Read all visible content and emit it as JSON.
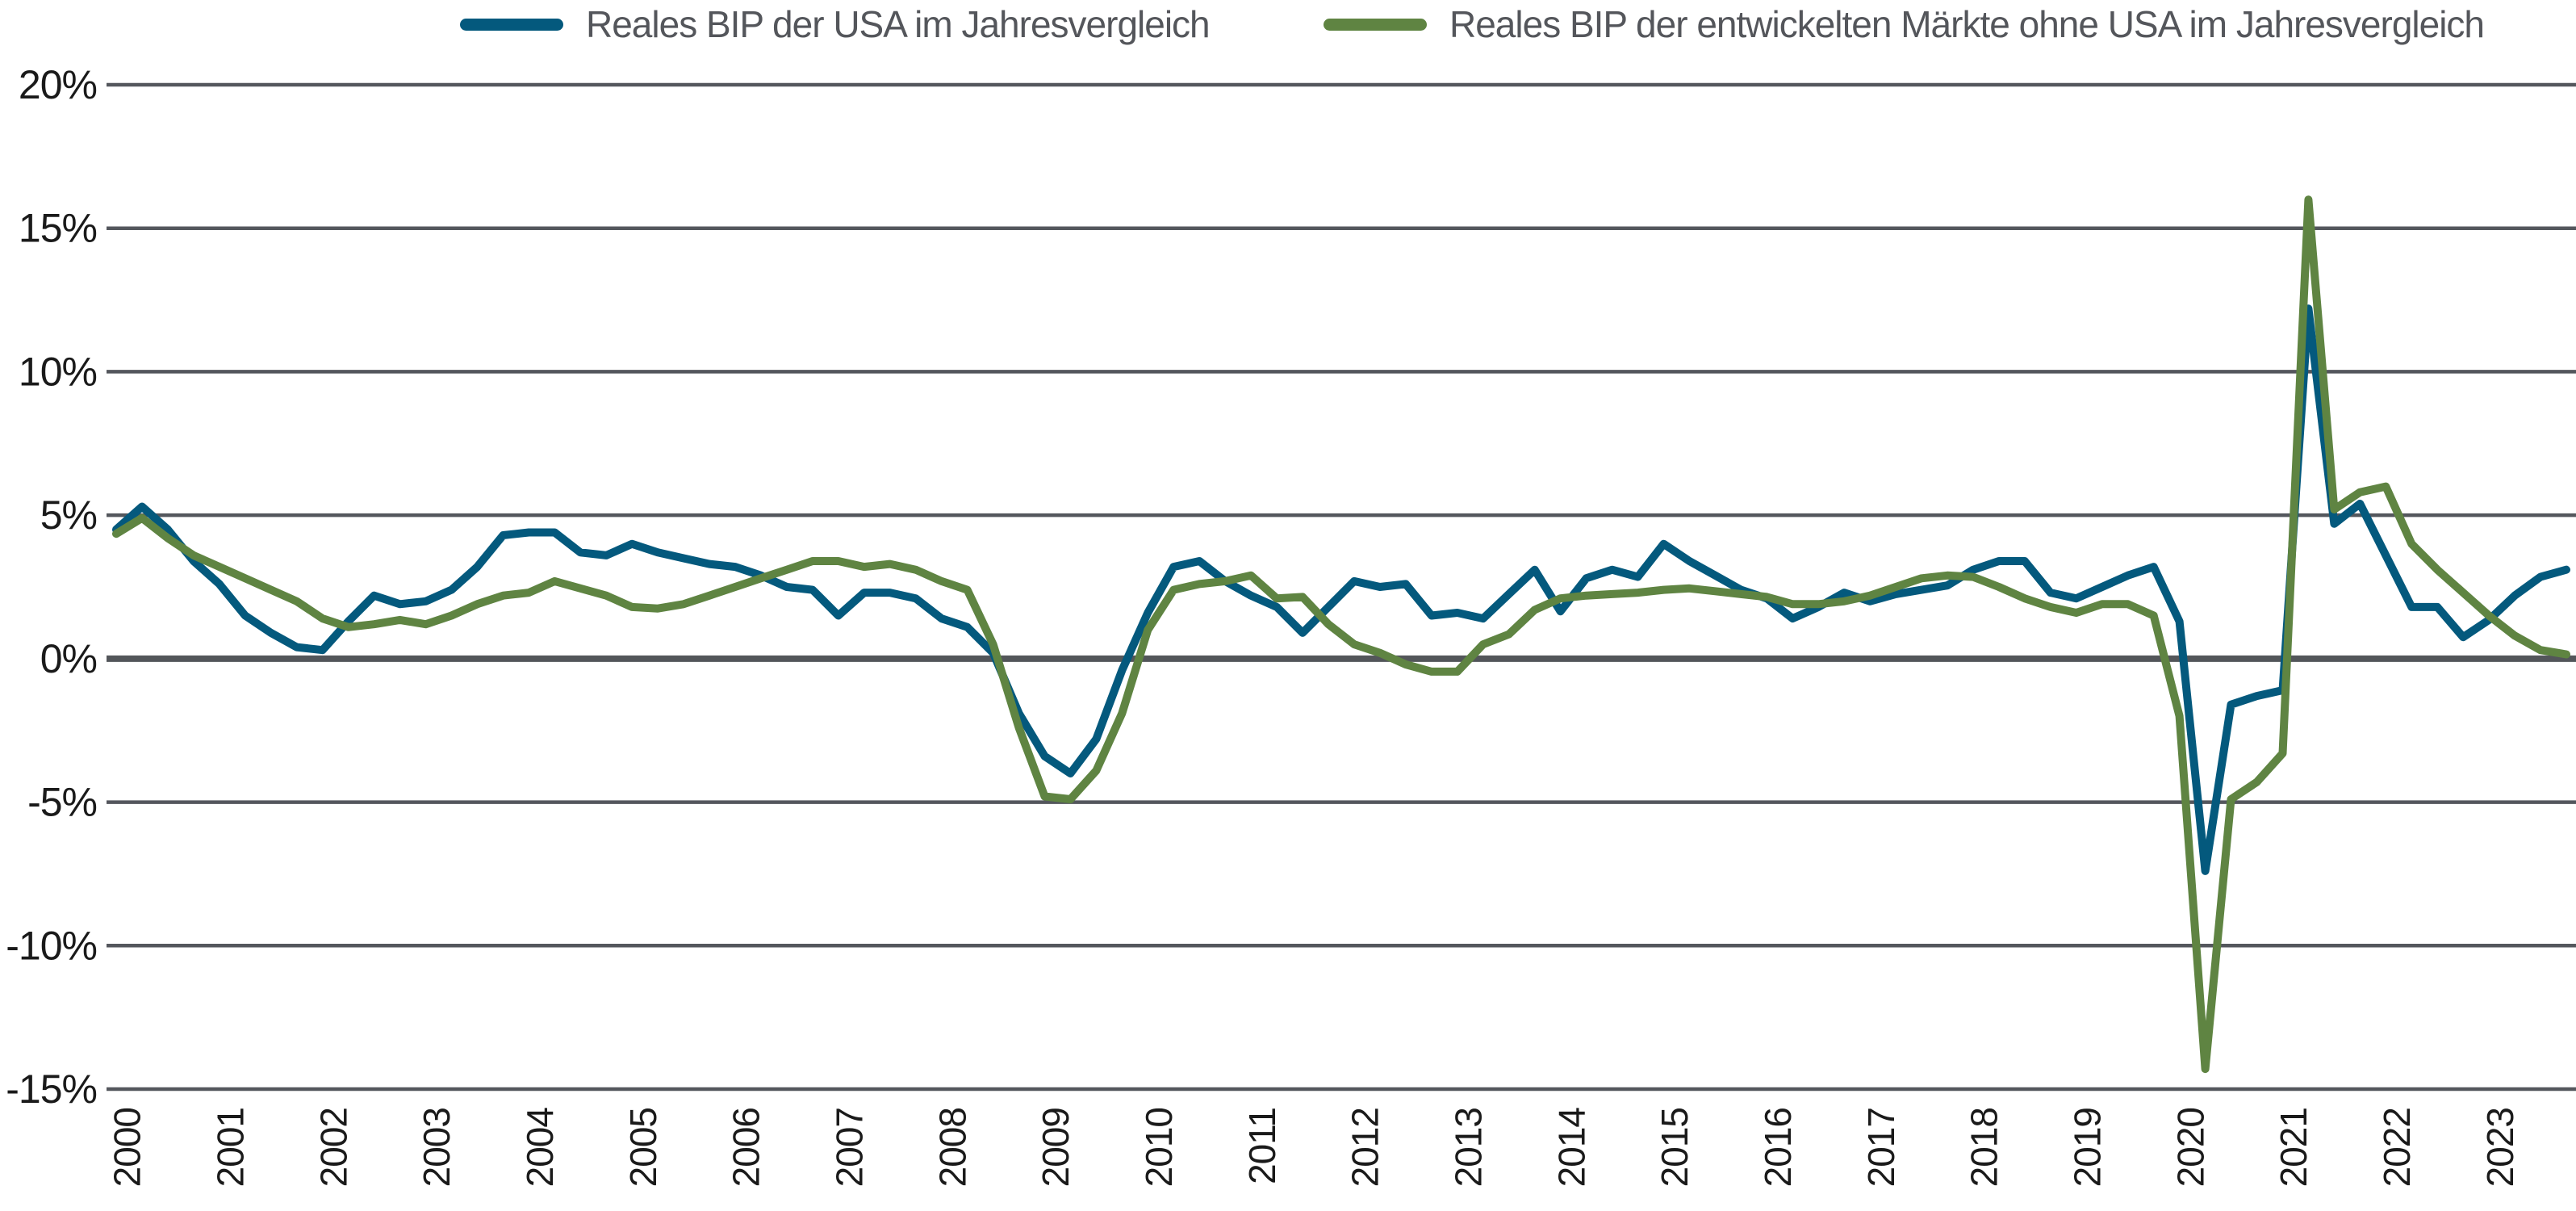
{
  "legend": {
    "position": "top",
    "entries": [
      {
        "label": "Reales BIP der USA im Jahresvergleich",
        "color": "#04597D"
      },
      {
        "label": "Reales BIP der entwickelten Märkte ohne USA im Jahresvergleich",
        "color": "#5F8442"
      }
    ]
  },
  "chart_data": {
    "type": "line",
    "title": "",
    "x": {
      "unit": "quarter",
      "start": "2000-Q1",
      "end": "2023-Q4",
      "points_per_year": 4,
      "tick_labels": [
        "2000",
        "2001",
        "2002",
        "2003",
        "2004",
        "2005",
        "2006",
        "2007",
        "2008",
        "2009",
        "2010",
        "2011",
        "2012",
        "2013",
        "2014",
        "2015",
        "2016",
        "2017",
        "2018",
        "2019",
        "2020",
        "2021",
        "2022",
        "2023"
      ]
    },
    "y": {
      "min": -15,
      "max": 20,
      "tick_step": 5,
      "unit": "%",
      "tick_labels": [
        "20%",
        "15%",
        "10%",
        "5%",
        "0%",
        "-5%",
        "-10%",
        "-15%"
      ],
      "tick_values": [
        20,
        15,
        10,
        5,
        0,
        -5,
        -10,
        -15
      ]
    },
    "grid": {
      "horizontal": true,
      "vertical": false,
      "zero_line_emphasis": true
    },
    "legend_position": "top",
    "series": [
      {
        "name": "Reales BIP der USA im Jahresvergleich",
        "color": "#04597D",
        "values": [
          4.5,
          5.3,
          4.5,
          3.4,
          2.6,
          1.5,
          0.9,
          0.4,
          0.3,
          1.3,
          2.2,
          1.9,
          2.0,
          2.4,
          3.2,
          4.3,
          4.4,
          4.4,
          3.7,
          3.6,
          4.0,
          3.7,
          3.5,
          3.3,
          3.2,
          2.9,
          2.5,
          2.4,
          1.5,
          2.3,
          2.3,
          2.1,
          1.4,
          1.1,
          0.2,
          -1.9,
          -3.4,
          -4.0,
          -2.8,
          -0.4,
          1.6,
          3.2,
          3.4,
          2.7,
          2.2,
          1.8,
          0.9,
          1.8,
          2.7,
          2.5,
          2.6,
          1.5,
          1.6,
          1.4,
          2.25,
          3.1,
          1.65,
          2.8,
          3.1,
          2.85,
          4.0,
          3.4,
          2.9,
          2.4,
          2.1,
          1.4,
          1.8,
          2.3,
          2.0,
          2.25,
          2.4,
          2.55,
          3.1,
          3.4,
          3.4,
          2.3,
          2.1,
          2.5,
          2.9,
          3.2,
          1.3,
          -7.4,
          -1.6,
          -1.3,
          -1.1,
          12.2,
          4.7,
          5.4,
          3.6,
          1.8,
          1.8,
          0.75,
          1.35,
          2.2,
          2.85,
          3.1
        ]
      },
      {
        "name": "Reales BIP der entwickelten Märkte ohne USA im Jahresvergleich",
        "color": "#5F8442",
        "values": [
          4.35,
          4.9,
          4.2,
          3.6,
          3.2,
          2.8,
          2.4,
          2.0,
          1.4,
          1.1,
          1.2,
          1.35,
          1.2,
          1.5,
          1.9,
          2.2,
          2.3,
          2.7,
          2.45,
          2.2,
          1.8,
          1.75,
          1.9,
          2.2,
          2.5,
          2.8,
          3.1,
          3.4,
          3.4,
          3.2,
          3.3,
          3.1,
          2.7,
          2.4,
          0.5,
          -2.4,
          -4.8,
          -4.9,
          -3.9,
          -1.9,
          1.0,
          2.4,
          2.6,
          2.7,
          2.9,
          2.1,
          2.15,
          1.2,
          0.5,
          0.2,
          -0.2,
          -0.45,
          -0.45,
          0.5,
          0.85,
          1.7,
          2.1,
          2.2,
          2.25,
          2.3,
          2.4,
          2.45,
          2.35,
          2.25,
          2.15,
          1.9,
          1.9,
          2.0,
          2.2,
          2.5,
          2.8,
          2.9,
          2.85,
          2.5,
          2.1,
          1.8,
          1.6,
          1.9,
          1.9,
          1.5,
          -2.0,
          -14.3,
          -4.9,
          -4.3,
          -3.3,
          16.0,
          5.2,
          5.8,
          6.0,
          4.0,
          3.1,
          2.3,
          1.5,
          0.8,
          0.3,
          0.15
        ]
      }
    ]
  },
  "colors": {
    "grid_line": "#54575D",
    "zero_line": "#53565A",
    "axis_text": "#1A1A1A",
    "legend_text": "#54565B",
    "background": "#FFFFFF"
  }
}
